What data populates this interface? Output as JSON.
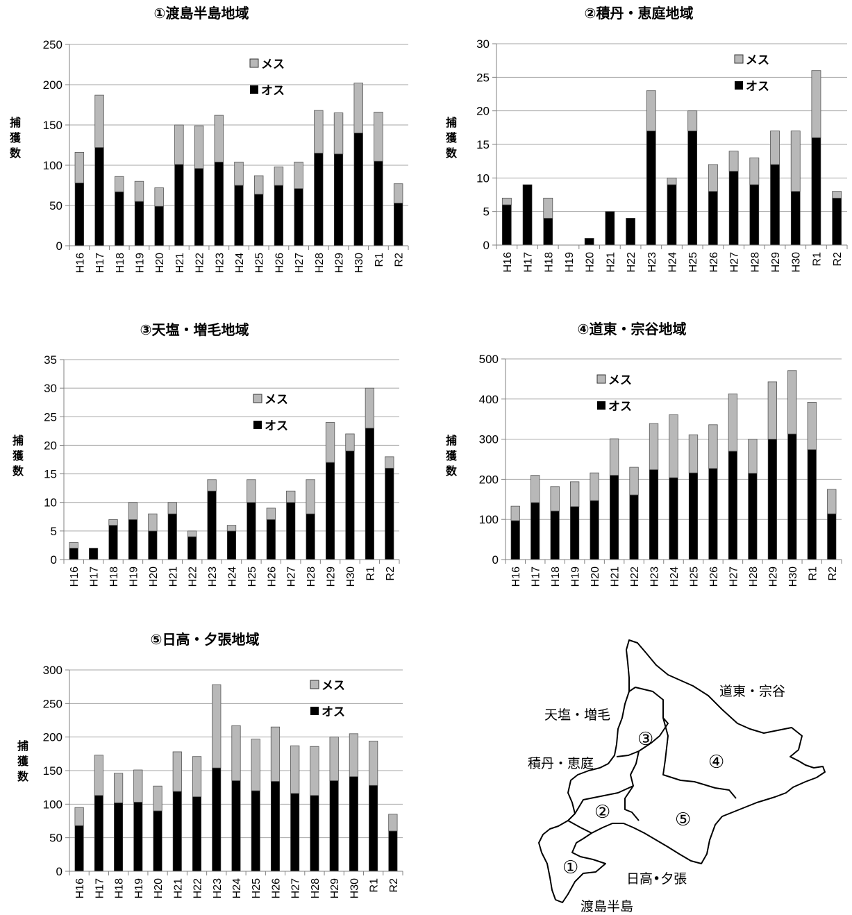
{
  "legend": {
    "female": "メス",
    "male": "オス"
  },
  "y_label": [
    "捕",
    "獲",
    "数"
  ],
  "colors": {
    "female": "#b8b8b8",
    "male": "#000000",
    "grid": "#a6a6a6",
    "axis": "#808080"
  },
  "chart_data": [
    {
      "type": "bar",
      "stacked": true,
      "title": "①渡島半島地域",
      "categories": [
        "H16",
        "H17",
        "H18",
        "H19",
        "H20",
        "H21",
        "H22",
        "H23",
        "H24",
        "H25",
        "H26",
        "H27",
        "H28",
        "H29",
        "H30",
        "R1",
        "R2"
      ],
      "series": [
        {
          "name": "オス",
          "values": [
            78,
            122,
            67,
            55,
            49,
            101,
            96,
            104,
            75,
            64,
            75,
            71,
            115,
            114,
            140,
            105,
            53
          ]
        },
        {
          "name": "メス",
          "values": [
            38,
            65,
            19,
            25,
            23,
            49,
            53,
            58,
            29,
            23,
            23,
            33,
            53,
            51,
            62,
            61,
            24
          ]
        }
      ],
      "ylim": [
        0,
        250
      ],
      "yticks": [
        0,
        50,
        100,
        150,
        200,
        250
      ],
      "legend_position": "top-center",
      "grid": true
    },
    {
      "type": "bar",
      "stacked": true,
      "title": "②積丹・恵庭地域",
      "categories": [
        "H16",
        "H17",
        "H18",
        "H19",
        "H20",
        "H21",
        "H22",
        "H23",
        "H24",
        "H25",
        "H26",
        "H27",
        "H28",
        "H29",
        "H30",
        "R1",
        "R2"
      ],
      "series": [
        {
          "name": "オス",
          "values": [
            6,
            9,
            4,
            0,
            1,
            5,
            4,
            17,
            9,
            17,
            8,
            11,
            9,
            12,
            8,
            16,
            7
          ]
        },
        {
          "name": "メス",
          "values": [
            1,
            0,
            3,
            0,
            0,
            0,
            0,
            6,
            1,
            3,
            4,
            3,
            4,
            5,
            9,
            10,
            1
          ]
        }
      ],
      "ylim": [
        0,
        30
      ],
      "yticks": [
        0,
        5,
        10,
        15,
        20,
        25,
        30
      ],
      "legend_position": "top-right",
      "grid": true
    },
    {
      "type": "bar",
      "stacked": true,
      "title": "③天塩・増毛地域",
      "categories": [
        "H16",
        "H17",
        "H18",
        "H19",
        "H20",
        "H21",
        "H22",
        "H23",
        "H24",
        "H25",
        "H26",
        "H27",
        "H28",
        "H29",
        "H30",
        "R1",
        "R2"
      ],
      "series": [
        {
          "name": "オス",
          "values": [
            2,
            2,
            6,
            7,
            5,
            8,
            4,
            12,
            5,
            10,
            7,
            10,
            8,
            17,
            19,
            23,
            16
          ]
        },
        {
          "name": "メス",
          "values": [
            1,
            0,
            1,
            3,
            3,
            2,
            1,
            2,
            1,
            4,
            2,
            2,
            6,
            7,
            3,
            7,
            2
          ]
        }
      ],
      "ylim": [
        0,
        35
      ],
      "yticks": [
        0,
        5,
        10,
        15,
        20,
        25,
        30,
        35
      ],
      "legend_position": "top-right",
      "grid": true
    },
    {
      "type": "bar",
      "stacked": true,
      "title": "④道東・宗谷地域",
      "categories": [
        "H16",
        "H17",
        "H18",
        "H19",
        "H20",
        "H21",
        "H22",
        "H23",
        "H24",
        "H25",
        "H26",
        "H27",
        "H28",
        "H29",
        "H30",
        "R1",
        "R2"
      ],
      "series": [
        {
          "name": "オス",
          "values": [
            97,
            142,
            121,
            132,
            147,
            210,
            161,
            224,
            204,
            216,
            227,
            270,
            215,
            300,
            313,
            274,
            114
          ]
        },
        {
          "name": "メス",
          "values": [
            36,
            68,
            61,
            62,
            69,
            91,
            69,
            115,
            157,
            95,
            109,
            143,
            85,
            143,
            158,
            118,
            61
          ]
        }
      ],
      "ylim": [
        0,
        500
      ],
      "yticks": [
        0,
        100,
        200,
        300,
        400,
        500
      ],
      "legend_position": "top-left",
      "grid": true
    },
    {
      "type": "bar",
      "stacked": true,
      "title": "⑤日高・夕張地域",
      "categories": [
        "H16",
        "H17",
        "H18",
        "H19",
        "H20",
        "H21",
        "H22",
        "H23",
        "H24",
        "H25",
        "H26",
        "H27",
        "H28",
        "H29",
        "H30",
        "R1",
        "R2"
      ],
      "series": [
        {
          "name": "オス",
          "values": [
            68,
            113,
            102,
            103,
            90,
            119,
            111,
            154,
            135,
            120,
            134,
            116,
            113,
            135,
            141,
            128,
            60
          ]
        },
        {
          "name": "メス",
          "values": [
            27,
            60,
            44,
            48,
            37,
            59,
            60,
            124,
            82,
            77,
            81,
            71,
            73,
            65,
            64,
            66,
            25
          ]
        }
      ],
      "ylim": [
        0,
        300
      ],
      "yticks": [
        0,
        50,
        100,
        150,
        200,
        250,
        300
      ],
      "legend_position": "top-right",
      "grid": true
    }
  ],
  "map": {
    "labels": {
      "doto_soya": "道東・宗谷",
      "teshio_mashike": "天塩・増毛",
      "shakotan_eniwa": "積丹・恵庭",
      "hidaka_yubari": "日高•夕張",
      "oshima": "渡島半島"
    },
    "numbers": [
      "①",
      "②",
      "③",
      "④",
      "⑤"
    ]
  }
}
